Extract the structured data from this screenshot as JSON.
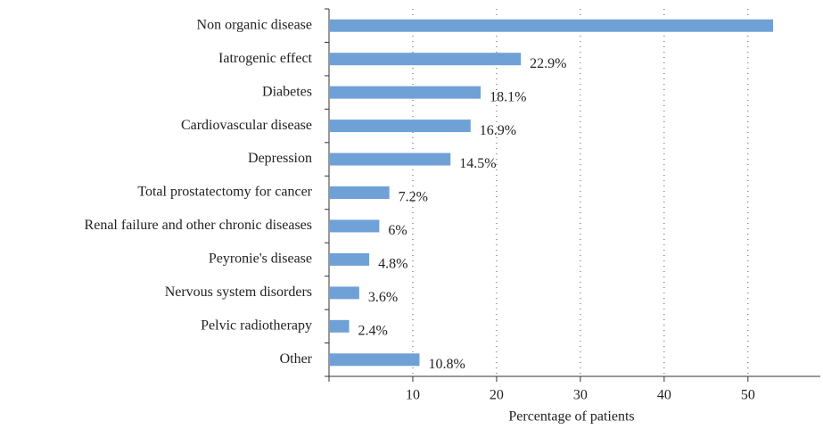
{
  "chart_data": {
    "type": "barh",
    "categories": [
      "Non organic disease",
      "Iatrogenic effect",
      "Diabetes",
      "Cardiovascular disease",
      "Depression",
      "Total prostatectomy for cancer",
      "Renal failure and other chronic diseases",
      "Peyronie's disease",
      "Nervous system disorders",
      "Pelvic radiotherapy",
      "Other"
    ],
    "values": [
      53,
      22.9,
      18.1,
      16.9,
      14.5,
      7.2,
      6,
      4.8,
      3.6,
      2.4,
      10.8
    ],
    "value_labels": [
      null,
      "22.9%",
      "18.1%",
      "16.9%",
      "14.5%",
      "7.2%",
      "6%",
      "4.8%",
      "3.6%",
      "2.4%",
      "10.8%"
    ],
    "color": "#6fa1d6",
    "xlabel": "Percentage of patients",
    "xlim": [
      0,
      58
    ],
    "xticks": [
      10,
      20,
      30,
      40,
      50
    ],
    "grid": true
  }
}
